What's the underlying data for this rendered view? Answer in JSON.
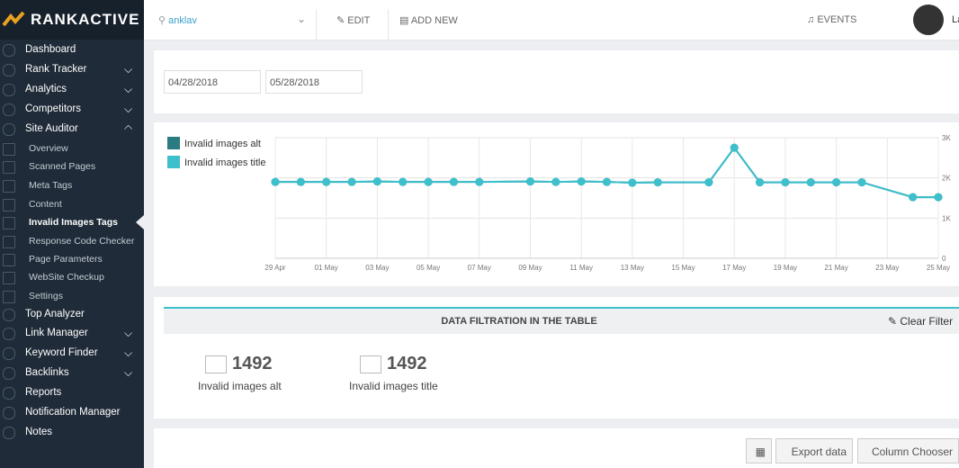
{
  "logo": "RANKACTIVE",
  "topbar": {
    "search": "anklav",
    "edit": "EDIT",
    "add_new": "ADD NEW",
    "events": "EVENTS",
    "user": "La"
  },
  "sidebar": {
    "items": [
      {
        "label": "Dashboard"
      },
      {
        "label": "Rank Tracker",
        "expandable": true
      },
      {
        "label": "Analytics",
        "expandable": true
      },
      {
        "label": "Competitors",
        "expandable": true
      },
      {
        "label": "Site Auditor",
        "expandable": true,
        "open": true
      },
      {
        "label": "Overview",
        "sub": true
      },
      {
        "label": "Scanned Pages",
        "sub": true
      },
      {
        "label": "Meta Tags",
        "sub": true
      },
      {
        "label": "Content",
        "sub": true
      },
      {
        "label": "Invalid Images Tags",
        "sub": true,
        "active": true
      },
      {
        "label": "Response Code Checker",
        "sub": true
      },
      {
        "label": "Page Parameters",
        "sub": true
      },
      {
        "label": "WebSite Checkup",
        "sub": true
      },
      {
        "label": "Settings",
        "sub": true
      },
      {
        "label": "Top Analyzer"
      },
      {
        "label": "Link Manager",
        "expandable": true
      },
      {
        "label": "Keyword Finder",
        "expandable": true
      },
      {
        "label": "Backlinks",
        "expandable": true
      },
      {
        "label": "Reports"
      },
      {
        "label": "Notification Manager"
      },
      {
        "label": "Notes"
      }
    ]
  },
  "dates": [
    "04/28/2018",
    "05/28/2018"
  ],
  "chart_data": {
    "type": "line",
    "x": [
      "29 Apr",
      "30 Apr",
      "01 May",
      "02 May",
      "03 May",
      "04 May",
      "05 May",
      "06 May",
      "07 May",
      "09 May",
      "10 May",
      "11 May",
      "12 May",
      "13 May",
      "14 May",
      "16 May",
      "17 May",
      "18 May",
      "19 May",
      "20 May",
      "21 May",
      "22 May",
      "24 May",
      "25 May"
    ],
    "series": [
      {
        "name": "Invalid images alt",
        "color": "#2b7b82",
        "values": [
          1900,
          1900,
          1900,
          1900,
          1910,
          1900,
          1900,
          1900,
          1900,
          1910,
          1900,
          1910,
          1900,
          1880,
          1890,
          1890,
          2750,
          1890,
          1890,
          1890,
          1890,
          1890,
          1520,
          1520
        ]
      },
      {
        "name": "Invalid images title",
        "color": "#3dbfcc",
        "values": [
          1900,
          1900,
          1900,
          1900,
          1910,
          1900,
          1900,
          1900,
          1900,
          1910,
          1900,
          1910,
          1900,
          1880,
          1890,
          1890,
          2750,
          1890,
          1890,
          1890,
          1890,
          1890,
          1520,
          1520
        ]
      }
    ],
    "xlim": [
      "29 Apr",
      "25 May"
    ],
    "xticks": [
      "29 Apr",
      "01 May",
      "03 May",
      "05 May",
      "07 May",
      "09 May",
      "11 May",
      "13 May",
      "15 May",
      "17 May",
      "19 May",
      "21 May",
      "23 May",
      "25 May"
    ],
    "ylim": [
      0,
      3000
    ],
    "yticks": [
      0,
      {
        "value": 1000,
        "label": "1K"
      },
      {
        "value": 2000,
        "label": "2K"
      },
      {
        "value": 3000,
        "label": "3K"
      }
    ],
    "grid": true
  },
  "filter": {
    "title": "DATA FILTRATION IN THE TABLE",
    "clear": "Clear Filter"
  },
  "stats": [
    {
      "value": 1492,
      "label": "Invalid images alt"
    },
    {
      "value": 1492,
      "label": "Invalid images title"
    }
  ],
  "buttons": {
    "export": "Export data",
    "columns": "Column Chooser"
  }
}
